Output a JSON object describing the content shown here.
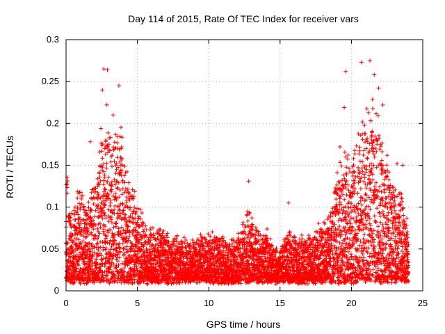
{
  "chart_data": {
    "type": "scatter",
    "title": "Day 114 of 2015, Rate Of TEC Index for receiver vars",
    "xlabel": "GPS time / hours",
    "ylabel": "ROTI / TECUs",
    "xlim": [
      0,
      25
    ],
    "ylim": [
      0,
      0.3
    ],
    "xticks": [
      "0",
      "5",
      "10",
      "15",
      "20",
      "25"
    ],
    "yticks": [
      "0",
      "0.05",
      "0.1",
      "0.15",
      "0.2",
      "0.25",
      "0.3"
    ],
    "grid": true,
    "marker": "+",
    "marker_color": "#ff0000",
    "x_sample_step": 0.02,
    "envelope": {
      "x": [
        0,
        0.5,
        1,
        1.5,
        2,
        2.5,
        2.8,
        3.2,
        3.8,
        4.2,
        4.6,
        5,
        5.5,
        6,
        7,
        8,
        9,
        10,
        11,
        12,
        12.8,
        13.5,
        14,
        14.6,
        15,
        15.6,
        16,
        17,
        18,
        18.5,
        19,
        19.5,
        20,
        20.5,
        21,
        21.5,
        22,
        22.5,
        23,
        23.5,
        24
      ],
      "y": [
        0.13,
        0.1,
        0.12,
        0.1,
        0.12,
        0.19,
        0.22,
        0.16,
        0.2,
        0.15,
        0.12,
        0.1,
        0.08,
        0.07,
        0.065,
        0.06,
        0.06,
        0.065,
        0.06,
        0.06,
        0.09,
        0.07,
        0.07,
        0.05,
        0.05,
        0.07,
        0.06,
        0.06,
        0.08,
        0.09,
        0.13,
        0.15,
        0.14,
        0.17,
        0.2,
        0.23,
        0.18,
        0.15,
        0.12,
        0.11,
        0.07
      ]
    },
    "peaks": [
      {
        "x": 2.65,
        "y": 0.265
      },
      {
        "x": 2.9,
        "y": 0.264
      },
      {
        "x": 2.55,
        "y": 0.24
      },
      {
        "x": 3.7,
        "y": 0.245
      },
      {
        "x": 3.3,
        "y": 0.21
      },
      {
        "x": 1.7,
        "y": 0.178
      },
      {
        "x": 12.8,
        "y": 0.131
      },
      {
        "x": 15.6,
        "y": 0.105
      },
      {
        "x": 19.6,
        "y": 0.262
      },
      {
        "x": 19.5,
        "y": 0.219
      },
      {
        "x": 19.2,
        "y": 0.172
      },
      {
        "x": 20.7,
        "y": 0.273
      },
      {
        "x": 21.3,
        "y": 0.275
      },
      {
        "x": 21.6,
        "y": 0.258
      },
      {
        "x": 21.9,
        "y": 0.242
      },
      {
        "x": 22.2,
        "y": 0.222
      },
      {
        "x": 23.2,
        "y": 0.152
      },
      {
        "x": 23.6,
        "y": 0.15
      }
    ]
  }
}
